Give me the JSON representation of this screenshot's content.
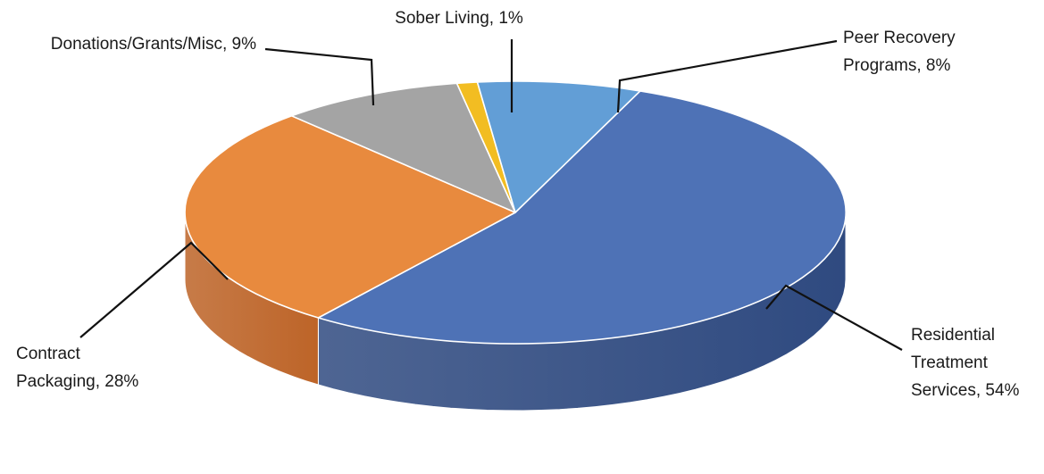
{
  "chart_data": {
    "type": "pie",
    "title": "",
    "style": "3d",
    "slices": [
      {
        "label": "Residential Treatment Services",
        "value": 54,
        "display": [
          "Residential",
          "Treatment",
          "Services, 54%"
        ],
        "color": "#4e72b6",
        "side": "#2f4a80"
      },
      {
        "label": "Contract Packaging",
        "value": 28,
        "display": [
          "Contract",
          "Packaging, 28%"
        ],
        "color": "#e88a3e",
        "side": "#bd6428"
      },
      {
        "label": "Donations/Grants/Misc",
        "value": 9,
        "display": [
          "Donations/Grants/Misc, 9%"
        ],
        "color": "#a4a4a4",
        "side": "#777777"
      },
      {
        "label": "Sober Living",
        "value": 1,
        "display": [
          "Sober Living, 1%"
        ],
        "color": "#f2bd22",
        "side": "#b98a10"
      },
      {
        "label": "Peer Recovery Programs",
        "value": 8,
        "display": [
          "Peer Recovery",
          "Programs, 8%"
        ],
        "color": "#629ed6",
        "side": "#3f73a8"
      }
    ]
  }
}
